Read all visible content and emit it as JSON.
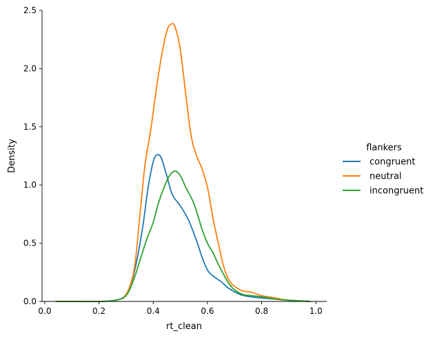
{
  "chart_data": {
    "type": "line",
    "title": "",
    "xlabel": "rt_clean",
    "ylabel": "Density",
    "xlim": [
      -0.01,
      1.04
    ],
    "ylim": [
      0,
      2.5
    ],
    "xticks": [
      0.0,
      0.2,
      0.4,
      0.6,
      0.8,
      1.0
    ],
    "xtick_labels": [
      "0.0",
      "0.2",
      "0.4",
      "0.6",
      "0.8",
      "1.0"
    ],
    "yticks": [
      0.0,
      0.5,
      1.0,
      1.5,
      2.0,
      2.5
    ],
    "ytick_labels": [
      "0.0",
      "0.5",
      "1.0",
      "1.5",
      "2.0",
      "2.5"
    ],
    "grid": false,
    "legend": {
      "title": "flankers",
      "placement": "right"
    },
    "series": [
      {
        "name": "congruent",
        "color": "#1f77b4",
        "points": [
          [
            0.04,
            0.0
          ],
          [
            0.1,
            0.0
          ],
          [
            0.2,
            0.0
          ],
          [
            0.26,
            0.01
          ],
          [
            0.3,
            0.06
          ],
          [
            0.33,
            0.25
          ],
          [
            0.36,
            0.62
          ],
          [
            0.38,
            0.96
          ],
          [
            0.4,
            1.2
          ],
          [
            0.415,
            1.26
          ],
          [
            0.43,
            1.23
          ],
          [
            0.45,
            1.08
          ],
          [
            0.47,
            0.92
          ],
          [
            0.5,
            0.82
          ],
          [
            0.53,
            0.7
          ],
          [
            0.56,
            0.52
          ],
          [
            0.58,
            0.38
          ],
          [
            0.6,
            0.27
          ],
          [
            0.62,
            0.22
          ],
          [
            0.65,
            0.17
          ],
          [
            0.68,
            0.11
          ],
          [
            0.72,
            0.06
          ],
          [
            0.76,
            0.04
          ],
          [
            0.8,
            0.03
          ],
          [
            0.85,
            0.02
          ],
          [
            0.9,
            0.01
          ],
          [
            0.98,
            0.0
          ]
        ]
      },
      {
        "name": "neutral",
        "color": "#ff7f0e",
        "points": [
          [
            0.04,
            0.0
          ],
          [
            0.1,
            0.0
          ],
          [
            0.2,
            0.0
          ],
          [
            0.26,
            0.01
          ],
          [
            0.3,
            0.06
          ],
          [
            0.33,
            0.28
          ],
          [
            0.35,
            0.72
          ],
          [
            0.37,
            1.18
          ],
          [
            0.39,
            1.46
          ],
          [
            0.41,
            1.8
          ],
          [
            0.43,
            2.1
          ],
          [
            0.45,
            2.32
          ],
          [
            0.465,
            2.38
          ],
          [
            0.48,
            2.36
          ],
          [
            0.5,
            2.16
          ],
          [
            0.52,
            1.78
          ],
          [
            0.54,
            1.42
          ],
          [
            0.56,
            1.25
          ],
          [
            0.58,
            1.14
          ],
          [
            0.6,
            0.98
          ],
          [
            0.62,
            0.72
          ],
          [
            0.64,
            0.5
          ],
          [
            0.66,
            0.3
          ],
          [
            0.68,
            0.18
          ],
          [
            0.7,
            0.13
          ],
          [
            0.73,
            0.09
          ],
          [
            0.76,
            0.08
          ],
          [
            0.8,
            0.05
          ],
          [
            0.85,
            0.03
          ],
          [
            0.9,
            0.01
          ],
          [
            0.98,
            0.0
          ]
        ]
      },
      {
        "name": "incongruent",
        "color": "#2ca02c",
        "points": [
          [
            0.04,
            0.0
          ],
          [
            0.1,
            0.0
          ],
          [
            0.2,
            0.0
          ],
          [
            0.26,
            0.01
          ],
          [
            0.3,
            0.05
          ],
          [
            0.33,
            0.2
          ],
          [
            0.36,
            0.42
          ],
          [
            0.38,
            0.56
          ],
          [
            0.4,
            0.68
          ],
          [
            0.42,
            0.85
          ],
          [
            0.44,
            0.98
          ],
          [
            0.46,
            1.08
          ],
          [
            0.48,
            1.12
          ],
          [
            0.5,
            1.08
          ],
          [
            0.52,
            0.98
          ],
          [
            0.55,
            0.84
          ],
          [
            0.58,
            0.62
          ],
          [
            0.6,
            0.5
          ],
          [
            0.62,
            0.42
          ],
          [
            0.64,
            0.32
          ],
          [
            0.66,
            0.23
          ],
          [
            0.68,
            0.15
          ],
          [
            0.7,
            0.1
          ],
          [
            0.73,
            0.06
          ],
          [
            0.76,
            0.05
          ],
          [
            0.8,
            0.04
          ],
          [
            0.85,
            0.02
          ],
          [
            0.9,
            0.01
          ],
          [
            0.98,
            0.0
          ]
        ]
      }
    ]
  }
}
